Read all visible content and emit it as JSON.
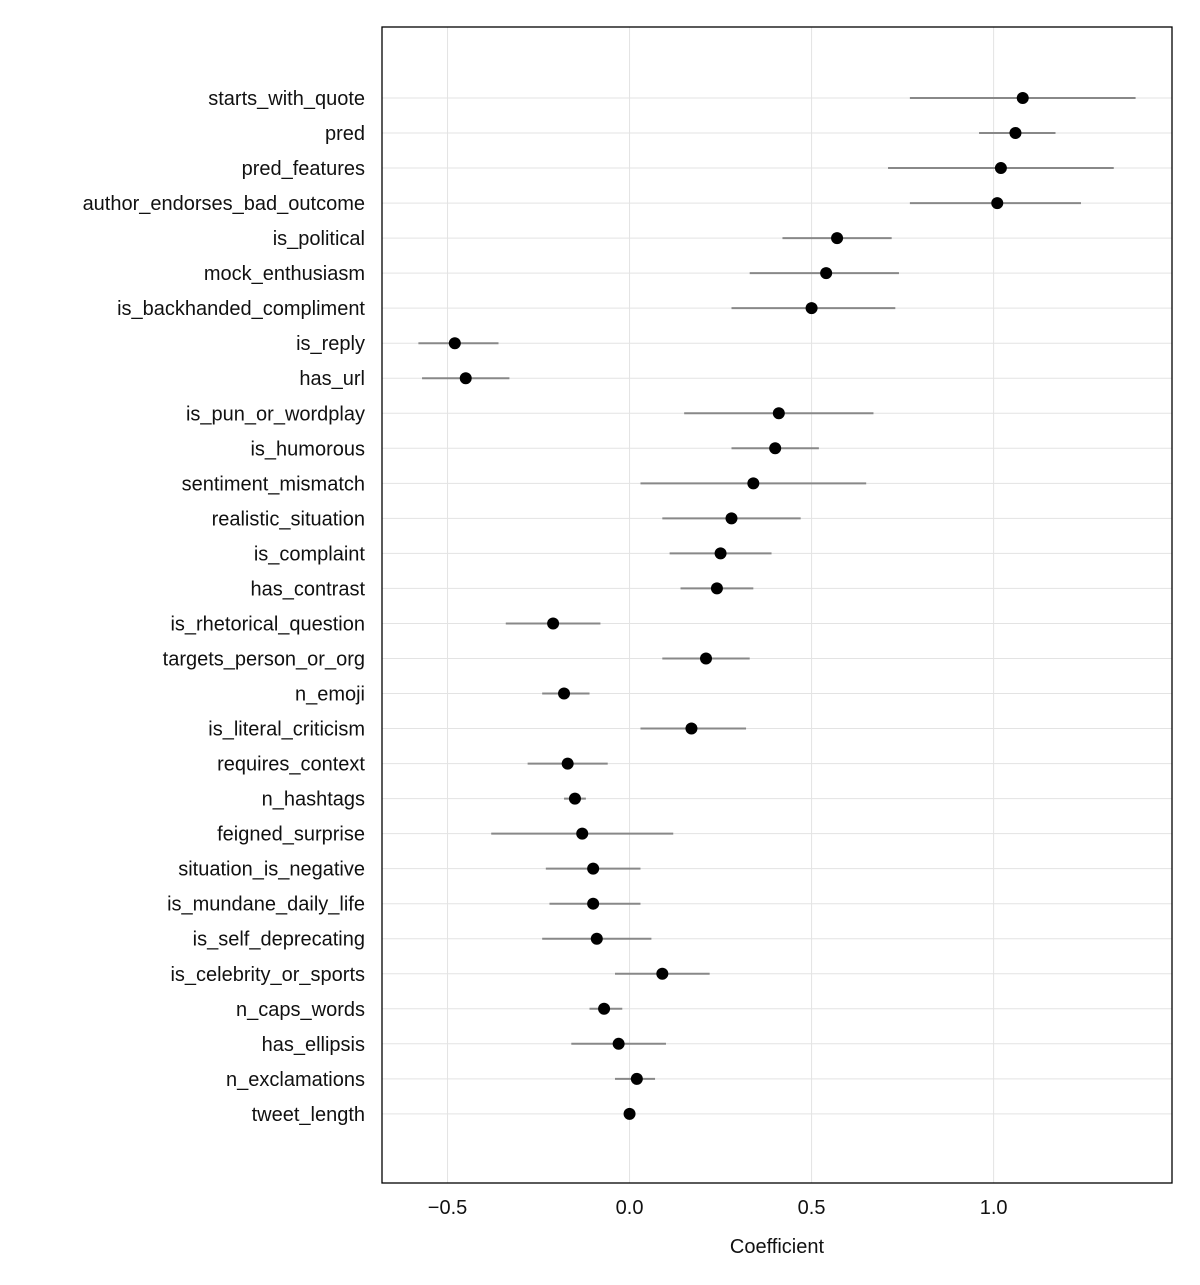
{
  "chart_data": {
    "type": "scatter",
    "orientation": "horizontal",
    "xlabel": "Coefficient",
    "ylabel": "",
    "title": "",
    "xlim": [
      -0.68,
      1.49
    ],
    "xticks": [
      -0.5,
      0.0,
      0.5,
      1.0
    ],
    "xtick_labels": [
      "−0.5",
      "0.0",
      "0.5",
      "1.0"
    ],
    "grid": true,
    "legend": "none",
    "colors": {
      "point": "#000000",
      "interval": "#888888",
      "grid": "#e3e3e3",
      "frame": "#000000"
    },
    "features": [
      {
        "label": "starts_with_quote",
        "coef": 1.08,
        "lo": 0.77,
        "hi": 1.39
      },
      {
        "label": "pred",
        "coef": 1.06,
        "lo": 0.96,
        "hi": 1.17
      },
      {
        "label": "pred_features",
        "coef": 1.02,
        "lo": 0.71,
        "hi": 1.33
      },
      {
        "label": "author_endorses_bad_outcome",
        "coef": 1.01,
        "lo": 0.77,
        "hi": 1.24
      },
      {
        "label": "is_political",
        "coef": 0.57,
        "lo": 0.42,
        "hi": 0.72
      },
      {
        "label": "mock_enthusiasm",
        "coef": 0.54,
        "lo": 0.33,
        "hi": 0.74
      },
      {
        "label": "is_backhanded_compliment",
        "coef": 0.5,
        "lo": 0.28,
        "hi": 0.73
      },
      {
        "label": "is_reply",
        "coef": -0.48,
        "lo": -0.58,
        "hi": -0.36
      },
      {
        "label": "has_url",
        "coef": -0.45,
        "lo": -0.57,
        "hi": -0.33
      },
      {
        "label": "is_pun_or_wordplay",
        "coef": 0.41,
        "lo": 0.15,
        "hi": 0.67
      },
      {
        "label": "is_humorous",
        "coef": 0.4,
        "lo": 0.28,
        "hi": 0.52
      },
      {
        "label": "sentiment_mismatch",
        "coef": 0.34,
        "lo": 0.03,
        "hi": 0.65
      },
      {
        "label": "realistic_situation",
        "coef": 0.28,
        "lo": 0.09,
        "hi": 0.47
      },
      {
        "label": "is_complaint",
        "coef": 0.25,
        "lo": 0.11,
        "hi": 0.39
      },
      {
        "label": "has_contrast",
        "coef": 0.24,
        "lo": 0.14,
        "hi": 0.34
      },
      {
        "label": "is_rhetorical_question",
        "coef": -0.21,
        "lo": -0.34,
        "hi": -0.08
      },
      {
        "label": "targets_person_or_org",
        "coef": 0.21,
        "lo": 0.09,
        "hi": 0.33
      },
      {
        "label": "n_emoji",
        "coef": -0.18,
        "lo": -0.24,
        "hi": -0.11
      },
      {
        "label": "is_literal_criticism",
        "coef": 0.17,
        "lo": 0.03,
        "hi": 0.32
      },
      {
        "label": "requires_context",
        "coef": -0.17,
        "lo": -0.28,
        "hi": -0.06
      },
      {
        "label": "n_hashtags",
        "coef": -0.15,
        "lo": -0.18,
        "hi": -0.12
      },
      {
        "label": "feigned_surprise",
        "coef": -0.13,
        "lo": -0.38,
        "hi": 0.12
      },
      {
        "label": "situation_is_negative",
        "coef": -0.1,
        "lo": -0.23,
        "hi": 0.03
      },
      {
        "label": "is_mundane_daily_life",
        "coef": -0.1,
        "lo": -0.22,
        "hi": 0.03
      },
      {
        "label": "is_self_deprecating",
        "coef": -0.09,
        "lo": -0.24,
        "hi": 0.06
      },
      {
        "label": "is_celebrity_or_sports",
        "coef": 0.09,
        "lo": -0.04,
        "hi": 0.22
      },
      {
        "label": "n_caps_words",
        "coef": -0.07,
        "lo": -0.11,
        "hi": -0.02
      },
      {
        "label": "has_ellipsis",
        "coef": -0.03,
        "lo": -0.16,
        "hi": 0.1
      },
      {
        "label": "n_exclamations",
        "coef": 0.02,
        "lo": -0.04,
        "hi": 0.07
      },
      {
        "label": "tweet_length",
        "coef": 0.0,
        "lo": 0.0,
        "hi": 0.0
      }
    ]
  }
}
